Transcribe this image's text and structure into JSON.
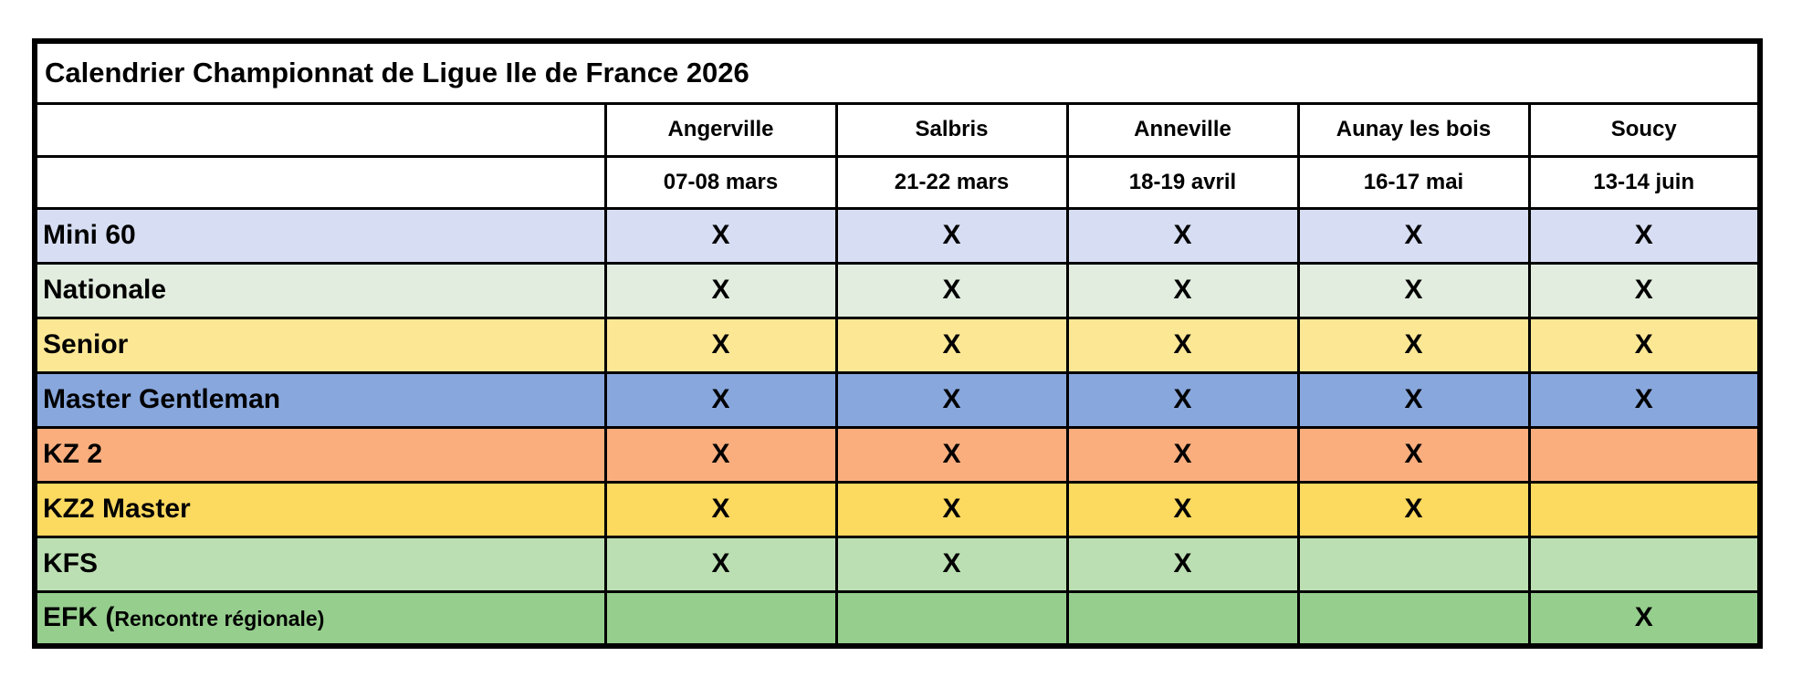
{
  "table": {
    "title": "Calendrier Championnat de Ligue Ile de France 2026",
    "columns": [
      {
        "venue": "Angerville",
        "date": "07-08 mars"
      },
      {
        "venue": "Salbris",
        "date": "21-22 mars"
      },
      {
        "venue": "Anneville",
        "date": "18-19 avril"
      },
      {
        "venue": "Aunay les bois",
        "date": "16-17 mai"
      },
      {
        "venue": "Soucy",
        "date": "13-14 juin"
      }
    ],
    "rows": [
      {
        "label": "Mini 60",
        "label_suffix": "",
        "color": "#D7DEF3",
        "marks": [
          "X",
          "X",
          "X",
          "X",
          "X"
        ]
      },
      {
        "label": "Nationale",
        "label_suffix": "",
        "color": "#E2EDE0",
        "marks": [
          "X",
          "X",
          "X",
          "X",
          "X"
        ]
      },
      {
        "label": "Senior",
        "label_suffix": "",
        "color": "#FCE795",
        "marks": [
          "X",
          "X",
          "X",
          "X",
          "X"
        ]
      },
      {
        "label": "Master Gentleman",
        "label_suffix": "",
        "color": "#88A7DD",
        "marks": [
          "X",
          "X",
          "X",
          "X",
          "X"
        ]
      },
      {
        "label": "KZ 2",
        "label_suffix": "",
        "color": "#FAAE7E",
        "marks": [
          "X",
          "X",
          "X",
          "X",
          ""
        ]
      },
      {
        "label": "KZ2 Master",
        "label_suffix": "",
        "color": "#FCD95F",
        "marks": [
          "X",
          "X",
          "X",
          "X",
          ""
        ]
      },
      {
        "label": "KFS",
        "label_suffix": "",
        "color": "#BBDFB2",
        "marks": [
          "X",
          "X",
          "X",
          "",
          ""
        ]
      },
      {
        "label": "EFK (",
        "label_suffix": "Rencontre régionale)",
        "color": "#96CE8D",
        "marks": [
          "",
          "",
          "",
          "",
          "X"
        ]
      }
    ],
    "mark_color": "#000000",
    "border_color": "#000000"
  }
}
